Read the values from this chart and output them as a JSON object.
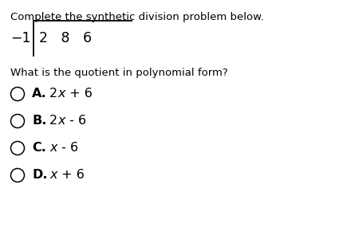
{
  "title_text": "Complete the synthetic division problem below.",
  "question_text": "What is the quotient in polynomial form?",
  "divisor": "-1",
  "coefficients": "2   8   6",
  "options": [
    {
      "label": "A.",
      "parts": [
        {
          "text": "2",
          "italic": false
        },
        {
          "text": "x",
          "italic": true
        },
        {
          "text": " + 6",
          "italic": false
        }
      ]
    },
    {
      "label": "B.",
      "parts": [
        {
          "text": "2",
          "italic": false
        },
        {
          "text": "x",
          "italic": true
        },
        {
          "text": " - 6",
          "italic": false
        }
      ]
    },
    {
      "label": "C.",
      "parts": [
        {
          "text": "x",
          "italic": true
        },
        {
          "text": " - 6",
          "italic": false
        }
      ]
    },
    {
      "label": "D.",
      "parts": [
        {
          "text": "x",
          "italic": true
        },
        {
          "text": " + 6",
          "italic": false
        }
      ]
    }
  ],
  "bg_color": "#ffffff",
  "text_color": "#000000",
  "font_size_title": 9.5,
  "font_size_division": 12.5,
  "font_size_question": 9.5,
  "font_size_options": 11.5,
  "figsize": [
    4.31,
    2.9
  ],
  "dpi": 100
}
